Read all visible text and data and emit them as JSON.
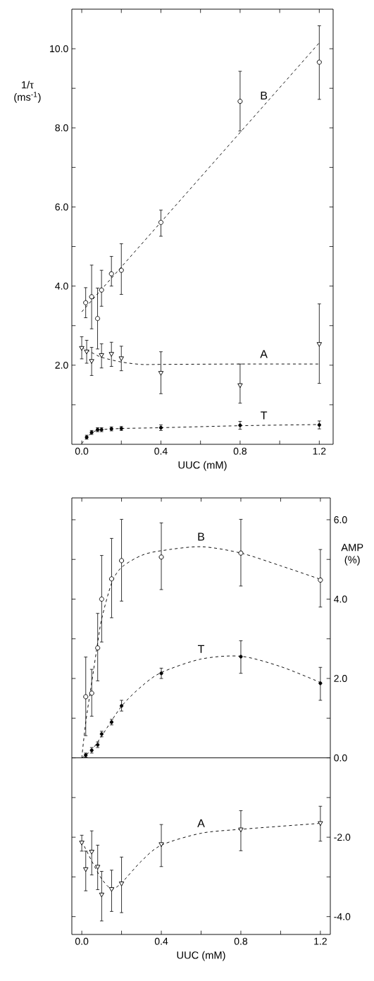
{
  "chart_data": [
    {
      "type": "scatter",
      "xlabel": "UUC (mM)",
      "ylabel": "1/τ (ms$^{-1}$)",
      "xlim": [
        -0.05,
        1.27
      ],
      "ylim": [
        0,
        11
      ],
      "xticks": [
        {
          "value": 0,
          "label": "0.0"
        },
        {
          "value": 0.2,
          "label": null
        },
        0.4,
        {
          "value": 0.6,
          "label": null
        },
        0.8,
        {
          "value": 1.0,
          "label": null
        },
        1.2
      ],
      "yticks": [
        {
          "value": 1,
          "label": null
        },
        {
          "value": 2,
          "label": "2.0"
        },
        {
          "value": 3,
          "label": null
        },
        {
          "value": 4,
          "label": "4.0"
        },
        {
          "value": 5,
          "label": null
        },
        {
          "value": 6,
          "label": "6.0"
        },
        {
          "value": 7,
          "label": null
        },
        {
          "value": 8,
          "label": "8.0"
        },
        {
          "value": 9,
          "label": null
        },
        {
          "value": 10,
          "label": "10.0"
        }
      ],
      "series": [
        {
          "marker": "circle",
          "color": "#000000",
          "x": [
            0.02,
            0.05,
            0.08,
            0.1,
            0.15,
            0.2,
            0.4,
            0.8,
            1.2
          ],
          "values": [
            3.58,
            3.73,
            3.18,
            3.9,
            4.31,
            4.4,
            5.61,
            8.67,
            9.66
          ],
          "errors": [
            [
              3.2,
              3.96
            ],
            [
              2.92,
              4.53
            ],
            [
              2.41,
              3.95
            ],
            [
              3.49,
              4.4
            ],
            [
              4.0,
              4.75
            ],
            [
              3.79,
              5.07
            ],
            [
              5.26,
              5.92
            ],
            [
              7.92,
              9.43
            ],
            [
              8.72,
              10.58
            ]
          ]
        },
        {
          "type": "line",
          "name": "B",
          "marker": "none",
          "line_style": "dashed",
          "color": "#000000",
          "x": [
            0,
            1.2
          ],
          "values": [
            3.35,
            10.15
          ]
        },
        {
          "marker": "triangle",
          "color": "#000000",
          "x": [
            0.0,
            0.025,
            0.05,
            0.1,
            0.15,
            0.2,
            0.4,
            0.8,
            1.2
          ],
          "values": [
            2.44,
            2.35,
            2.11,
            2.26,
            2.29,
            2.18,
            1.81,
            1.5,
            2.54
          ],
          "errors": [
            [
              2.16,
              2.72
            ],
            [
              2.05,
              2.63
            ],
            [
              1.74,
              2.45
            ],
            [
              1.93,
              2.54
            ],
            [
              1.97,
              2.58
            ],
            [
              1.86,
              2.48
            ],
            [
              1.28,
              2.34
            ],
            [
              1.04,
              2.03
            ],
            [
              1.54,
              3.55
            ]
          ]
        },
        {
          "type": "line",
          "name": "A",
          "marker": "none",
          "line_style": "dashed",
          "color": "#000000",
          "x": [
            0,
            0.05,
            0.1,
            0.2,
            0.3,
            0.4,
            0.8,
            1.2
          ],
          "values": [
            2.45,
            2.32,
            2.2,
            2.08,
            2.02,
            2.02,
            2.03,
            2.03
          ]
        },
        {
          "marker": "dot",
          "color": "#000000",
          "x": [
            0.025,
            0.05,
            0.08,
            0.1,
            0.15,
            0.2,
            0.4,
            0.8,
            1.2
          ],
          "values": [
            0.18,
            0.3,
            0.37,
            0.37,
            0.39,
            0.4,
            0.42,
            0.48,
            0.49
          ],
          "errors": [
            [
              0.13,
              0.23
            ],
            [
              0.25,
              0.35
            ],
            [
              0.32,
              0.42
            ],
            [
              0.32,
              0.42
            ],
            [
              0.34,
              0.44
            ],
            [
              0.35,
              0.45
            ],
            [
              0.35,
              0.49
            ],
            [
              0.38,
              0.58
            ],
            [
              0.39,
              0.59
            ]
          ]
        },
        {
          "type": "line",
          "name": "T",
          "marker": "none",
          "line_style": "dashed",
          "color": "#000000",
          "x": [
            0.0,
            0.03,
            0.06,
            0.1,
            0.2,
            0.4,
            0.8,
            1.2
          ],
          "values": [
            0.02,
            0.2,
            0.32,
            0.37,
            0.4,
            0.42,
            0.47,
            0.5
          ]
        }
      ]
    },
    {
      "type": "scatter",
      "xlabel": "UUC (mM)",
      "ylabel": "AMP (%)",
      "xlim": [
        -0.05,
        1.25
      ],
      "ylim": [
        -4.45,
        6.55
      ],
      "xticks": [
        {
          "value": 0,
          "label": "0.0"
        },
        {
          "value": 0.2,
          "label": null
        },
        0.4,
        {
          "value": 0.6,
          "label": null
        },
        0.8,
        {
          "value": 1.0,
          "label": null
        },
        1.2
      ],
      "yticks": [
        {
          "value": -4,
          "label": "-4.0"
        },
        {
          "value": -3,
          "label": null
        },
        {
          "value": -2,
          "label": "-2.0"
        },
        {
          "value": -1,
          "label": null
        },
        {
          "value": 0,
          "label": "0.0"
        },
        {
          "value": 1,
          "label": null
        },
        {
          "value": 2,
          "label": "2.0"
        },
        {
          "value": 3,
          "label": null
        },
        {
          "value": 4,
          "label": "4.0"
        },
        {
          "value": 5,
          "label": null
        },
        {
          "value": 6,
          "label": "6.0"
        }
      ],
      "ref_lines": [
        {
          "axis": "y",
          "value": 0
        }
      ],
      "series": [
        {
          "marker": "circle",
          "color": "#000000",
          "x": [
            0.02,
            0.05,
            0.08,
            0.1,
            0.15,
            0.2,
            0.4,
            0.8,
            1.2
          ],
          "values": [
            1.54,
            1.63,
            2.77,
            4.0,
            4.51,
            4.97,
            5.06,
            5.16,
            4.48
          ],
          "errors": [
            [
              0.56,
              2.54
            ],
            [
              1.05,
              2.23
            ],
            [
              1.94,
              3.64
            ],
            [
              2.92,
              5.1
            ],
            [
              3.53,
              5.53
            ],
            [
              3.95,
              6.01
            ],
            [
              4.24,
              5.92
            ],
            [
              4.33,
              6.01
            ],
            [
              3.8,
              5.25
            ]
          ]
        },
        {
          "type": "line",
          "name": "B",
          "marker": "none",
          "line_style": "dashed",
          "color": "#000000",
          "x": [
            0,
            0.02,
            0.05,
            0.08,
            0.1,
            0.15,
            0.2,
            0.3,
            0.4,
            0.6,
            0.8,
            1.0,
            1.2
          ],
          "values": [
            0,
            0.9,
            1.9,
            2.9,
            3.5,
            4.4,
            4.8,
            5.1,
            5.22,
            5.32,
            5.16,
            4.84,
            4.5
          ]
        },
        {
          "marker": "dot",
          "color": "#000000",
          "x": [
            0.02,
            0.05,
            0.08,
            0.1,
            0.15,
            0.2,
            0.4,
            0.8,
            1.2
          ],
          "values": [
            0.07,
            0.19,
            0.33,
            0.6,
            0.9,
            1.31,
            2.13,
            2.55,
            1.88
          ],
          "errors": [
            [
              0.02,
              0.12
            ],
            [
              0.12,
              0.26
            ],
            [
              0.26,
              0.4
            ],
            [
              0.53,
              0.67
            ],
            [
              0.83,
              0.97
            ],
            [
              1.18,
              1.45
            ],
            [
              2.0,
              2.26
            ],
            [
              2.13,
              2.95
            ],
            [
              1.45,
              2.28
            ]
          ]
        },
        {
          "type": "line",
          "name": "T",
          "marker": "none",
          "line_style": "dashed",
          "color": "#000000",
          "x": [
            0,
            0.05,
            0.1,
            0.2,
            0.3,
            0.4,
            0.6,
            0.8,
            1.0,
            1.2
          ],
          "values": [
            0,
            0.2,
            0.55,
            1.3,
            1.8,
            2.15,
            2.49,
            2.56,
            2.3,
            1.9
          ]
        },
        {
          "marker": "triangle",
          "color": "#000000",
          "x": [
            0,
            0.02,
            0.05,
            0.08,
            0.1,
            0.15,
            0.2,
            0.4,
            0.8,
            1.2
          ],
          "values": [
            -2.13,
            -2.8,
            -2.36,
            -2.74,
            -3.44,
            -3.3,
            -3.16,
            -2.17,
            -1.8,
            -1.64
          ],
          "errors": [
            [
              -2.35,
              -1.95
            ],
            [
              -3.35,
              -2.35
            ],
            [
              -2.95,
              -1.84
            ],
            [
              -3.32,
              -2.2
            ],
            [
              -4.11,
              -2.86
            ],
            [
              -3.87,
              -2.83
            ],
            [
              -3.9,
              -2.5
            ],
            [
              -2.74,
              -1.68
            ],
            [
              -2.34,
              -1.33
            ],
            [
              -2.1,
              -1.22
            ]
          ]
        },
        {
          "type": "line",
          "name": "A",
          "marker": "none",
          "line_style": "dashed",
          "color": "#000000",
          "x": [
            0,
            0.05,
            0.1,
            0.15,
            0.2,
            0.3,
            0.4,
            0.6,
            0.8,
            1.2
          ],
          "values": [
            -2.1,
            -2.6,
            -3.05,
            -3.3,
            -3.15,
            -2.6,
            -2.2,
            -1.9,
            -1.8,
            -1.65
          ]
        }
      ]
    }
  ]
}
